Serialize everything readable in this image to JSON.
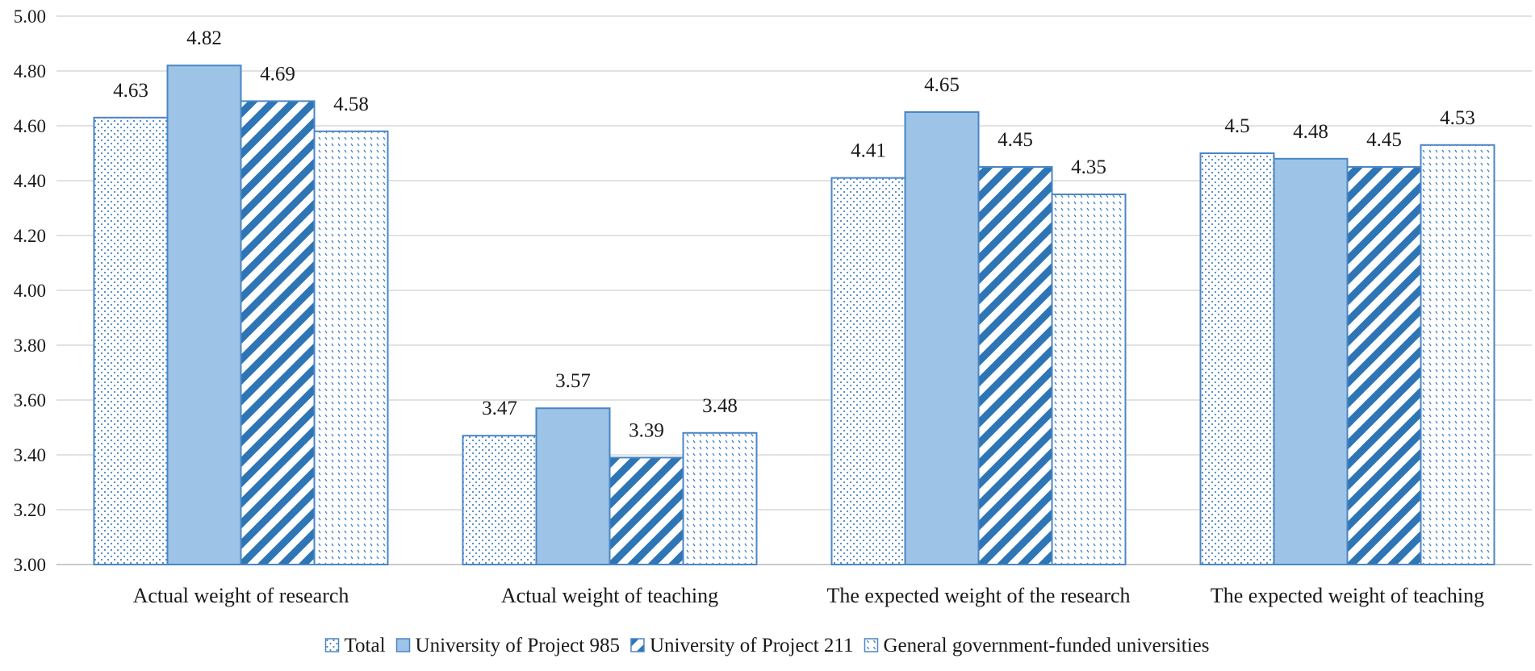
{
  "chart_data": {
    "type": "bar",
    "categories": [
      "Actual weight of research",
      "Actual weight of teaching",
      "The expected weight of the research",
      "The expected weight of teaching"
    ],
    "series": [
      {
        "name": "Total",
        "values": [
          4.63,
          3.47,
          4.41,
          4.5
        ],
        "labels": [
          "4.63",
          "3.47",
          "4.41",
          "4.5"
        ],
        "pattern": "dots-fine"
      },
      {
        "name": "University of Project 985",
        "values": [
          4.82,
          3.57,
          4.65,
          4.48
        ],
        "labels": [
          "4.82",
          "3.57",
          "4.65",
          "4.48"
        ],
        "pattern": "solid"
      },
      {
        "name": "University of Project 211",
        "values": [
          4.69,
          3.39,
          4.45,
          4.45
        ],
        "labels": [
          "4.69",
          "3.39",
          "4.45",
          "4.45"
        ],
        "pattern": "diagonal-stripes"
      },
      {
        "name": "General government-funded universities",
        "values": [
          4.58,
          3.48,
          4.35,
          4.53
        ],
        "labels": [
          "4.58",
          "3.48",
          "4.35",
          "4.53"
        ],
        "pattern": "dots-sparse"
      }
    ],
    "ylim": [
      3.0,
      5.0
    ],
    "yticks": [
      "3.00",
      "3.20",
      "3.40",
      "3.60",
      "3.80",
      "4.00",
      "4.20",
      "4.40",
      "4.60",
      "4.80",
      "5.00"
    ],
    "grid": true,
    "legend_position": "bottom",
    "colors": {
      "bar_fill": "#9dc3e6",
      "bar_border": "#4a86c5",
      "pattern_color": "#2e75b6",
      "grid": "#d9d9d9",
      "text": "#1a1a1a"
    }
  }
}
